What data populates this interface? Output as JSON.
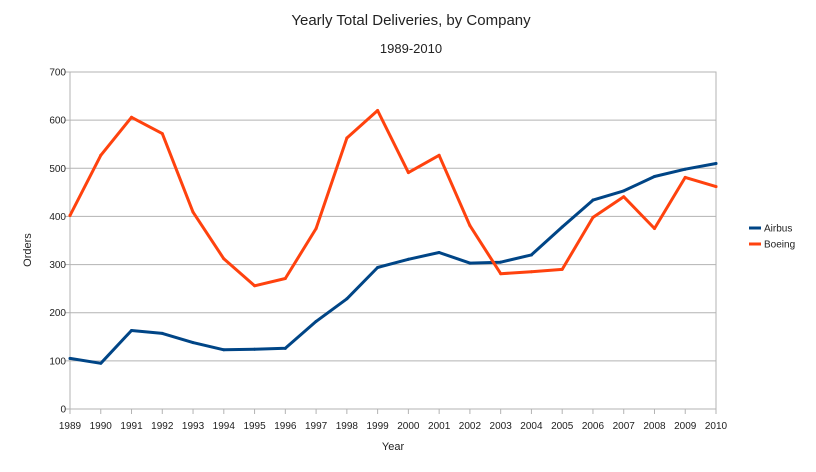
{
  "chart_data": {
    "type": "line",
    "title": "Yearly Total Deliveries, by Company",
    "subtitle": "1989-2010",
    "xlabel": "Year",
    "ylabel": "Orders",
    "x": [
      "1989",
      "1990",
      "1991",
      "1992",
      "1993",
      "1994",
      "1995",
      "1996",
      "1997",
      "1998",
      "1999",
      "2000",
      "2001",
      "2002",
      "2003",
      "2004",
      "2005",
      "2006",
      "2007",
      "2008",
      "2009",
      "2010"
    ],
    "ylim": [
      0,
      700
    ],
    "yticks": [
      "0",
      "100",
      "200",
      "300",
      "400",
      "500",
      "600",
      "700"
    ],
    "grid": true,
    "legend_position": "right",
    "series": [
      {
        "name": "Airbus",
        "color": "#004586",
        "values": [
          105,
          95,
          163,
          157,
          138,
          123,
          124,
          126,
          182,
          229,
          294,
          311,
          325,
          303,
          305,
          320,
          378,
          434,
          453,
          483,
          498,
          510
        ]
      },
      {
        "name": "Boeing",
        "color": "#ff420e",
        "values": [
          402,
          527,
          606,
          572,
          409,
          312,
          256,
          271,
          375,
          563,
          620,
          491,
          527,
          381,
          281,
          285,
          290,
          398,
          441,
          375,
          481,
          462
        ]
      }
    ]
  }
}
